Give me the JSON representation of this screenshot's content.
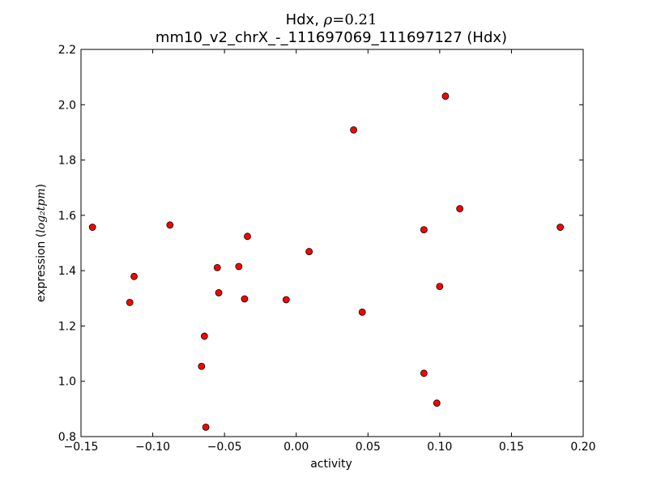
{
  "chart_data": {
    "type": "scatter",
    "title_line1_prefix": "Hdx, ",
    "title_rho_symbol": "ρ",
    "title_rho_value": "=0.21",
    "title_line2": "mm10_v2_chrX_-_111697069_111697127 (Hdx)",
    "xlabel": "activity",
    "ylabel_prefix": "expression (",
    "ylabel_math": "log₂tpm",
    "ylabel_suffix": ")",
    "xlim": [
      -0.15,
      0.2
    ],
    "ylim": [
      0.8,
      2.2
    ],
    "x_ticks": [
      {
        "value": -0.15,
        "label": "−0.15"
      },
      {
        "value": -0.1,
        "label": "−0.10"
      },
      {
        "value": -0.05,
        "label": "−0.05"
      },
      {
        "value": 0.0,
        "label": "0.00"
      },
      {
        "value": 0.05,
        "label": "0.05"
      },
      {
        "value": 0.1,
        "label": "0.10"
      },
      {
        "value": 0.15,
        "label": "0.15"
      },
      {
        "value": 0.2,
        "label": "0.20"
      }
    ],
    "y_ticks": [
      {
        "value": 0.8,
        "label": "0.8"
      },
      {
        "value": 1.0,
        "label": "1.0"
      },
      {
        "value": 1.2,
        "label": "1.2"
      },
      {
        "value": 1.4,
        "label": "1.4"
      },
      {
        "value": 1.6,
        "label": "1.6"
      },
      {
        "value": 1.8,
        "label": "1.8"
      },
      {
        "value": 2.0,
        "label": "2.0"
      },
      {
        "value": 2.2,
        "label": "2.2"
      }
    ],
    "grid": false,
    "marker_color": "#ff0000",
    "marker_edge_color": "#000000",
    "points": [
      {
        "x": -0.142,
        "y": 1.557
      },
      {
        "x": -0.116,
        "y": 1.285
      },
      {
        "x": -0.113,
        "y": 1.379
      },
      {
        "x": -0.088,
        "y": 1.565
      },
      {
        "x": -0.066,
        "y": 1.054
      },
      {
        "x": -0.064,
        "y": 1.163
      },
      {
        "x": -0.063,
        "y": 0.834
      },
      {
        "x": -0.055,
        "y": 1.411
      },
      {
        "x": -0.054,
        "y": 1.32
      },
      {
        "x": -0.04,
        "y": 1.415
      },
      {
        "x": -0.036,
        "y": 1.298
      },
      {
        "x": -0.034,
        "y": 1.524
      },
      {
        "x": -0.007,
        "y": 1.295
      },
      {
        "x": 0.009,
        "y": 1.469
      },
      {
        "x": 0.04,
        "y": 1.909
      },
      {
        "x": 0.046,
        "y": 1.25
      },
      {
        "x": 0.089,
        "y": 1.548
      },
      {
        "x": 0.089,
        "y": 1.029
      },
      {
        "x": 0.098,
        "y": 0.921
      },
      {
        "x": 0.1,
        "y": 1.343
      },
      {
        "x": 0.104,
        "y": 2.031
      },
      {
        "x": 0.114,
        "y": 1.624
      },
      {
        "x": 0.184,
        "y": 1.557
      }
    ]
  }
}
